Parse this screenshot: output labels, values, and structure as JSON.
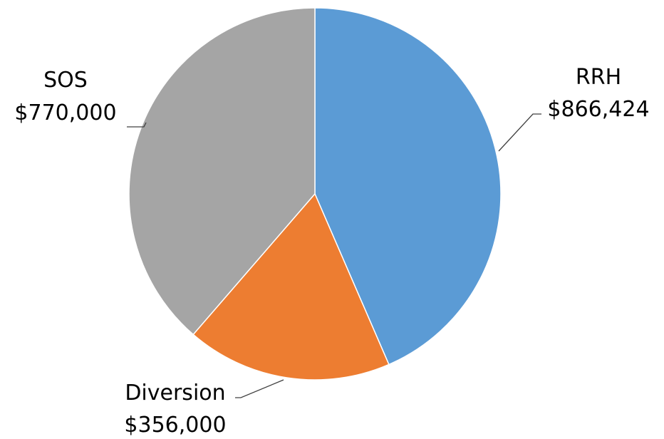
{
  "chart_data": {
    "type": "pie",
    "title": "",
    "start_angle_deg": 0,
    "direction": "clockwise",
    "legend": "none",
    "slices": [
      {
        "name": "RRH",
        "value": 866424,
        "value_label": "$866,424",
        "color": "#5B9BD5"
      },
      {
        "name": "Diversion",
        "value": 356000,
        "value_label": "$356,000",
        "color": "#ED7D31"
      },
      {
        "name": "SOS",
        "value": 770000,
        "value_label": "$770,000",
        "color": "#A5A5A5"
      }
    ]
  }
}
